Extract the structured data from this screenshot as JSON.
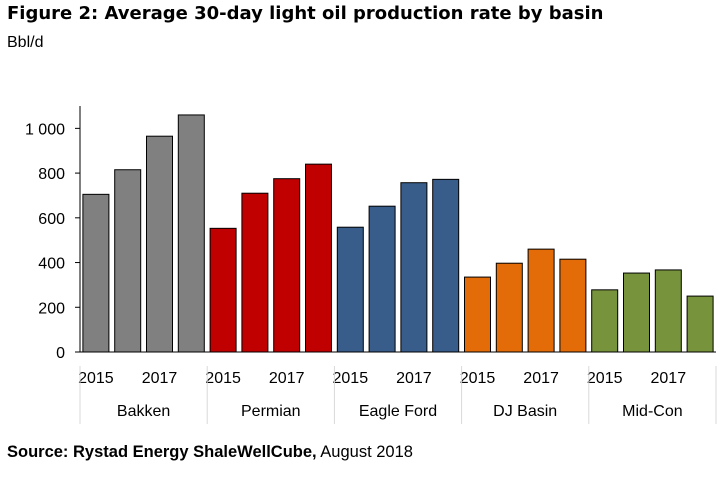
{
  "title": "Figure 2: Average 30-day light oil production rate by basin",
  "unit_label": "Bbl/d",
  "source_bold": "Source: Rystad Energy ShaleWellCube,",
  "source_rest": " August 2018",
  "colors": {
    "Bakken": "#808080",
    "Permian": "#c00000",
    "Eagle Ford": "#385d8a",
    "DJ Basin": "#e36c09",
    "Mid-Con": "#77933c"
  },
  "chart_data": {
    "type": "bar",
    "title": "",
    "xlabel": "",
    "ylabel": "Bbl/d",
    "ylim": [
      0,
      1100
    ],
    "yticks": [
      0,
      200,
      400,
      600,
      800,
      1000
    ],
    "ytick_labels": [
      "0",
      "200",
      "400",
      "600",
      "800",
      "1 000"
    ],
    "grid": false,
    "groups": [
      {
        "name": "Bakken",
        "categories": [
          "2015",
          "",
          "2017",
          ""
        ],
        "values": [
          705,
          815,
          965,
          1060
        ]
      },
      {
        "name": "Permian",
        "categories": [
          "2015",
          "",
          "2017",
          ""
        ],
        "values": [
          553,
          710,
          775,
          840
        ]
      },
      {
        "name": "Eagle Ford",
        "categories": [
          "2015",
          "",
          "2017",
          ""
        ],
        "values": [
          558,
          652,
          757,
          772
        ]
      },
      {
        "name": "DJ Basin",
        "categories": [
          "2015",
          "",
          "2017",
          ""
        ],
        "values": [
          335,
          397,
          460,
          415
        ]
      },
      {
        "name": "Mid-Con",
        "categories": [
          "2015",
          "",
          "2017",
          ""
        ],
        "values": [
          278,
          353,
          367,
          250
        ]
      }
    ]
  }
}
